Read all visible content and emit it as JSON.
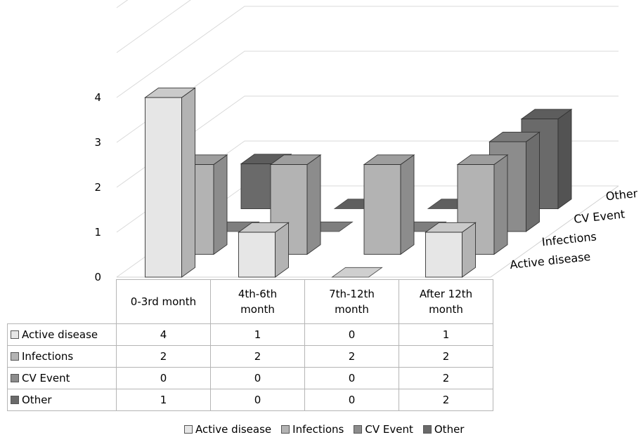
{
  "chart_data": {
    "type": "bar",
    "subtype": "3d-column-with-data-table",
    "categories": [
      "0-3rd month",
      "4th-6th month",
      "7th-12th month",
      "After 12th month"
    ],
    "category_label_lines": [
      [
        "0-3rd month"
      ],
      [
        "4th-6th",
        "month"
      ],
      [
        "7th-12th",
        "month"
      ],
      [
        "After 12th",
        "month"
      ]
    ],
    "series": [
      {
        "name": "Active disease",
        "values": [
          4,
          1,
          0,
          1
        ],
        "color": "#e6e6e6"
      },
      {
        "name": "Infections",
        "values": [
          2,
          2,
          2,
          2
        ],
        "color": "#b3b3b3"
      },
      {
        "name": "CV Event",
        "values": [
          0,
          0,
          0,
          2
        ],
        "color": "#8c8c8c"
      },
      {
        "name": "Other",
        "values": [
          1,
          0,
          0,
          2
        ],
        "color": "#6a6a6a"
      }
    ],
    "depth_labels": [
      "Active disease",
      "Infections",
      "CV Event",
      "Other"
    ],
    "y_ticks": [
      "0",
      "1",
      "2",
      "3",
      "4"
    ],
    "ylim": [
      0,
      4
    ],
    "grid": true,
    "legend": "bottom",
    "data_table": true
  }
}
